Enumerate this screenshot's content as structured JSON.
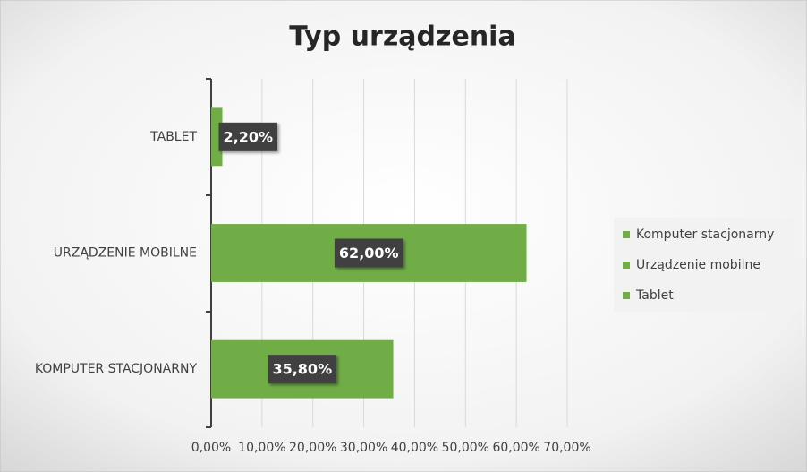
{
  "chart_data": {
    "type": "bar",
    "orientation": "horizontal",
    "title": "Typ urządzenia",
    "categories": [
      "KOMPUTER STACJONARNY",
      "URZĄDZENIE MOBILNE",
      "TABLET"
    ],
    "values": [
      35.8,
      62,
      2.2
    ],
    "value_labels": [
      "35,80%",
      "62,00%",
      "2,20%"
    ],
    "color": "#70ad47",
    "legend": [
      "Komputer stacjonarny",
      "Urządzenie mobilne",
      "Tablet"
    ],
    "legend_position": "right",
    "xlim": [
      0,
      70
    ],
    "xticks": [
      {
        "value": 0,
        "label": "0,00%"
      },
      {
        "value": 10,
        "label": "10,00%"
      },
      {
        "value": 20,
        "label": "20,00%"
      },
      {
        "value": 30,
        "label": "30,00%"
      },
      {
        "value": 40,
        "label": "40,00%"
      },
      {
        "value": 50,
        "label": "50,00%"
      },
      {
        "value": 60,
        "label": "60,00%"
      },
      {
        "value": 70,
        "label": "70,00%"
      }
    ],
    "grid": true
  }
}
